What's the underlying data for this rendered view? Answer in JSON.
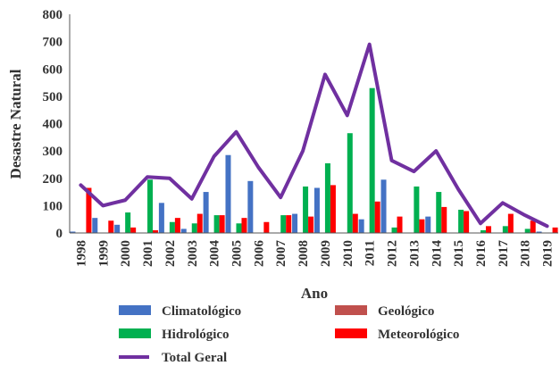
{
  "chart_data": {
    "type": "bar",
    "xlabel": "Ano",
    "ylabel": "Desastre Natural",
    "ylim": [
      0,
      800
    ],
    "yticks": [
      "0",
      "100",
      "200",
      "300",
      "400",
      "500",
      "600",
      "700",
      "800"
    ],
    "categories": [
      "1998",
      "1999",
      "2000",
      "2001",
      "2002",
      "2003",
      "2004",
      "2005",
      "2006",
      "2007",
      "2008",
      "2009",
      "2010",
      "2011",
      "2012",
      "2013",
      "2014",
      "2015",
      "2016",
      "2017",
      "2018",
      "2019"
    ],
    "grid": false,
    "legend_position": "bottom",
    "series": [
      {
        "name": "Climatológico",
        "type": "bar",
        "color": "#4472c4",
        "values": [
          5,
          55,
          30,
          0,
          110,
          15,
          150,
          285,
          190,
          0,
          70,
          165,
          0,
          50,
          195,
          0,
          60,
          0,
          0,
          0,
          0,
          5
        ]
      },
      {
        "name": "Geológico",
        "type": "bar",
        "color": "#c0504d",
        "values": [
          0,
          0,
          0,
          0,
          0,
          0,
          0,
          0,
          0,
          0,
          0,
          0,
          0,
          0,
          0,
          0,
          0,
          0,
          0,
          0,
          0,
          0
        ]
      },
      {
        "name": "Hidrológico",
        "type": "bar",
        "color": "#00b050",
        "values": [
          0,
          0,
          75,
          195,
          40,
          35,
          65,
          35,
          0,
          65,
          170,
          255,
          365,
          530,
          20,
          170,
          150,
          85,
          10,
          25,
          15,
          0
        ]
      },
      {
        "name": "Meteorológico",
        "type": "bar",
        "color": "#ff0000",
        "values": [
          165,
          45,
          20,
          10,
          55,
          70,
          65,
          55,
          40,
          65,
          60,
          175,
          70,
          115,
          60,
          50,
          95,
          80,
          25,
          70,
          45,
          20
        ]
      },
      {
        "name": "Total Geral",
        "type": "line",
        "color": "#7030a0",
        "values": [
          175,
          100,
          120,
          205,
          200,
          125,
          280,
          370,
          240,
          130,
          300,
          580,
          430,
          690,
          265,
          225,
          300,
          160,
          35,
          110,
          65,
          25
        ]
      }
    ]
  }
}
